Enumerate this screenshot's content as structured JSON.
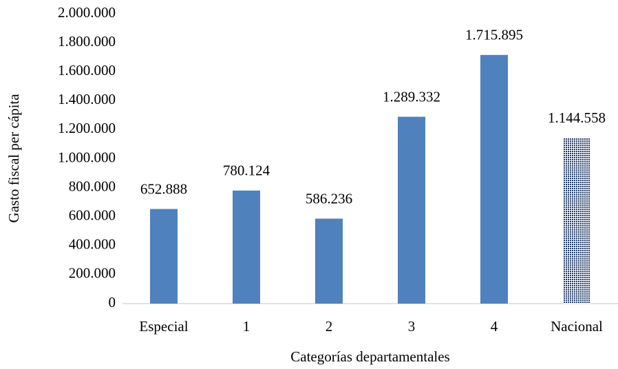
{
  "chart_data": {
    "type": "bar",
    "x_label": "Categorías departamentales",
    "y_label": "Gasto fiscal per cápita",
    "categories": [
      "Especial",
      "1",
      "2",
      "3",
      "4",
      "Nacional"
    ],
    "values": [
      652888,
      780124,
      586236,
      1289332,
      1715895,
      1144558
    ],
    "value_labels": [
      "652.888",
      "780.124",
      "586.236",
      "1.289.332",
      "1.715.895",
      "1.144.558"
    ],
    "colors": [
      "#4f81bd",
      "#4f81bd",
      "#4f81bd",
      "#4f81bd",
      "#4f81bd",
      "#1f3864"
    ],
    "patterns": [
      null,
      null,
      null,
      null,
      null,
      "dots"
    ],
    "ylim": [
      0,
      2000000
    ],
    "yticks": [
      0,
      {
        "value": 200000,
        "label": "200.000"
      },
      {
        "value": 400000,
        "label": "400.000"
      },
      {
        "value": 600000,
        "label": "600.000"
      },
      {
        "value": 800000,
        "label": "800.000"
      },
      {
        "value": 1000000,
        "label": "1.000.000"
      },
      {
        "value": 1200000,
        "label": "1.200.000"
      },
      {
        "value": 1400000,
        "label": "1.400.000"
      },
      {
        "value": 1600000,
        "label": "1.600.000"
      },
      {
        "value": 1800000,
        "label": "1.800.000"
      },
      {
        "value": 2000000,
        "label": "2.000.000"
      }
    ],
    "grid": false
  }
}
